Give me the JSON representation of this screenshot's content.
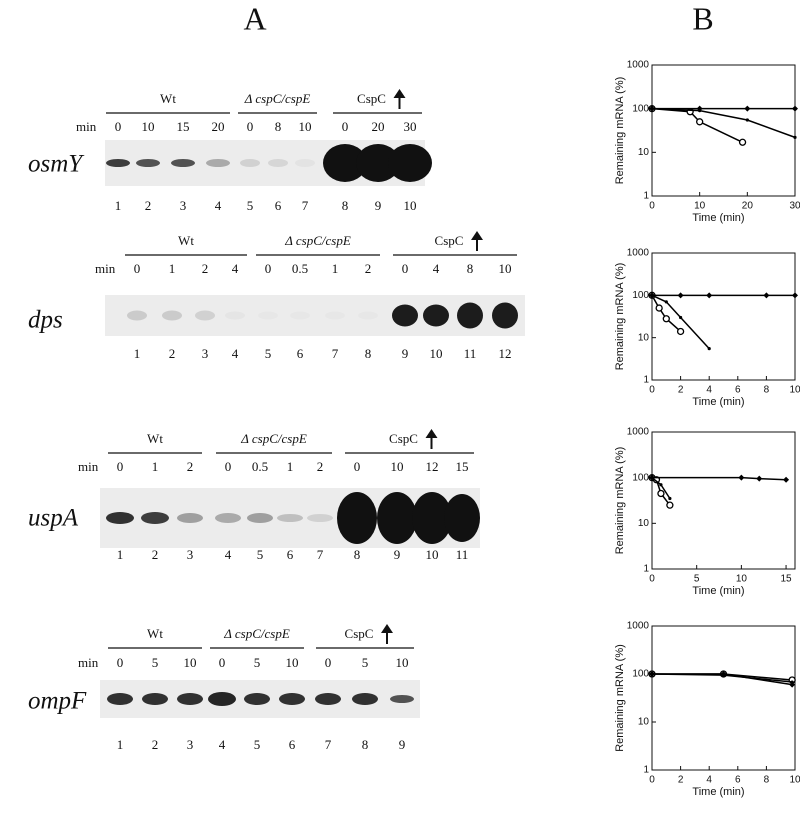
{
  "panel_labels": [
    "A",
    "B"
  ],
  "blots": [
    {
      "gene": "osmY",
      "min_label": "min",
      "groups": [
        {
          "label": "Wt",
          "times": [
            0,
            10,
            15,
            20
          ]
        },
        {
          "label": "Δ cspC/cspE",
          "times": [
            0,
            8,
            10
          ]
        },
        {
          "label": "CspC",
          "times": [
            0,
            20,
            30
          ]
        }
      ],
      "lanes": [
        1,
        2,
        3,
        4,
        5,
        6,
        7,
        8,
        9,
        10
      ]
    },
    {
      "gene": "dps",
      "min_label": "min",
      "groups": [
        {
          "label": "Wt",
          "times": [
            0,
            1,
            2,
            4
          ]
        },
        {
          "label": "Δ cspC/cspE",
          "times": [
            0,
            0.5,
            1,
            2
          ]
        },
        {
          "label": "CspC",
          "times": [
            0,
            4,
            8,
            10
          ]
        }
      ],
      "lanes": [
        1,
        2,
        3,
        4,
        5,
        6,
        7,
        8,
        9,
        10,
        11,
        12
      ]
    },
    {
      "gene": "uspA",
      "min_label": "min",
      "groups": [
        {
          "label": "Wt",
          "times": [
            0,
            1,
            2
          ]
        },
        {
          "label": "Δ cspC/cspE",
          "times": [
            0,
            0.5,
            1,
            2
          ]
        },
        {
          "label": "CspC",
          "times": [
            0,
            10,
            12,
            15
          ]
        }
      ],
      "lanes": [
        1,
        2,
        3,
        4,
        5,
        6,
        7,
        8,
        9,
        10,
        11
      ]
    },
    {
      "gene": "ompF",
      "min_label": "min",
      "groups": [
        {
          "label": "Wt",
          "times": [
            0,
            5,
            10
          ]
        },
        {
          "label": "Δ cspC/cspE",
          "times": [
            0,
            5,
            10
          ]
        },
        {
          "label": "CspC",
          "times": [
            0,
            5,
            10
          ]
        }
      ],
      "lanes": [
        1,
        2,
        3,
        4,
        5,
        6,
        7,
        8,
        9
      ]
    }
  ],
  "chart_data": [
    {
      "type": "line",
      "y_label": "Remaining mRNA (%)",
      "x_label": "Time (min)",
      "y_scale": "log",
      "xlim": [
        0,
        30
      ],
      "xticks": [
        0,
        10,
        20,
        30
      ],
      "ylim": [
        1,
        1000
      ],
      "yticks": [
        1,
        10,
        100,
        1000
      ],
      "color": "#000000",
      "series": [
        {
          "marker": "circle-open",
          "x": [
            0,
            8,
            10,
            19
          ],
          "values": [
            100,
            85,
            50,
            17
          ]
        },
        {
          "marker": "dot",
          "x": [
            0,
            10,
            20,
            30
          ],
          "values": [
            100,
            90,
            55,
            22
          ]
        },
        {
          "marker": "diamond",
          "x": [
            0,
            10,
            20,
            30
          ],
          "values": [
            100,
            100,
            100,
            100
          ]
        }
      ]
    },
    {
      "type": "line",
      "y_label": "Remaining mRNA (%)",
      "x_label": "Time (min)",
      "y_scale": "log",
      "xlim": [
        0,
        10
      ],
      "xticks": [
        0,
        2,
        4,
        6,
        8,
        10
      ],
      "ylim": [
        1,
        1000
      ],
      "yticks": [
        1,
        10,
        100,
        1000
      ],
      "color": "#000000",
      "series": [
        {
          "marker": "circle-open",
          "x": [
            0,
            0.5,
            1,
            2
          ],
          "values": [
            100,
            50,
            28,
            14
          ]
        },
        {
          "marker": "dot",
          "x": [
            0,
            1,
            2,
            4
          ],
          "values": [
            100,
            70,
            30,
            5.5
          ]
        },
        {
          "marker": "diamond",
          "x": [
            0,
            2,
            4,
            8,
            10
          ],
          "values": [
            100,
            100,
            100,
            100,
            100
          ]
        }
      ]
    },
    {
      "type": "line",
      "y_label": "Remaining mRNA (%)",
      "x_label": "Time (min)",
      "y_scale": "log",
      "xlim": [
        0,
        16
      ],
      "xticks": [
        0,
        5,
        10,
        15
      ],
      "ylim": [
        1,
        1000
      ],
      "yticks": [
        1,
        10,
        100,
        1000
      ],
      "color": "#000000",
      "series": [
        {
          "marker": "circle-open",
          "x": [
            0,
            0.5,
            1,
            2
          ],
          "values": [
            100,
            90,
            45,
            25
          ]
        },
        {
          "marker": "dot",
          "x": [
            0,
            1,
            2
          ],
          "values": [
            100,
            70,
            35
          ]
        },
        {
          "marker": "diamond",
          "x": [
            0,
            10,
            12,
            15
          ],
          "values": [
            100,
            100,
            95,
            90
          ]
        }
      ]
    },
    {
      "type": "line",
      "y_label": "Remaining mRNA (%)",
      "x_label": "Time (min)",
      "y_scale": "log",
      "xlim": [
        0,
        10
      ],
      "xticks": [
        0,
        2,
        4,
        6,
        8,
        10
      ],
      "ylim": [
        1,
        1000
      ],
      "yticks": [
        1,
        10,
        100,
        1000
      ],
      "color": "#000000",
      "series": [
        {
          "marker": "circle-open",
          "x": [
            0,
            5,
            9.8
          ],
          "values": [
            100,
            100,
            75
          ]
        },
        {
          "marker": "dot",
          "x": [
            0,
            5,
            9.8
          ],
          "values": [
            100,
            95,
            68
          ]
        },
        {
          "marker": "diamond",
          "x": [
            0,
            5,
            9.8
          ],
          "values": [
            100,
            100,
            60
          ]
        }
      ]
    }
  ]
}
